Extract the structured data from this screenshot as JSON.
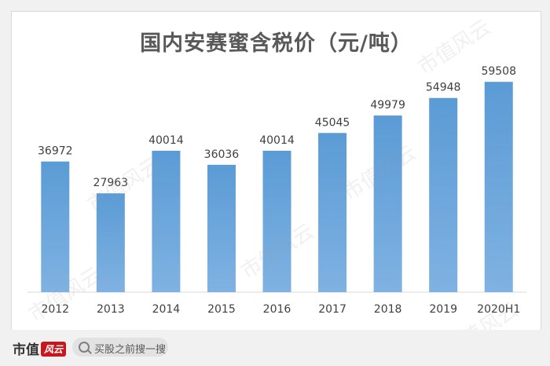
{
  "chart_data": {
    "type": "bar",
    "title": "国内安赛蜜含税价（元/吨）",
    "categories": [
      "2012",
      "2013",
      "2014",
      "2015",
      "2016",
      "2017",
      "2018",
      "2019",
      "2020H1"
    ],
    "values": [
      36972,
      27963,
      40014,
      36036,
      40014,
      45045,
      49979,
      54948,
      59508
    ],
    "ylim": [
      0,
      66000
    ],
    "grid": false,
    "legend": "none",
    "bar_color": "#5b9bd5"
  },
  "watermark": "市值风云",
  "footer": {
    "brand_name": "市值",
    "brand_badge": "风云",
    "search_text": "买股之前搜一搜"
  }
}
